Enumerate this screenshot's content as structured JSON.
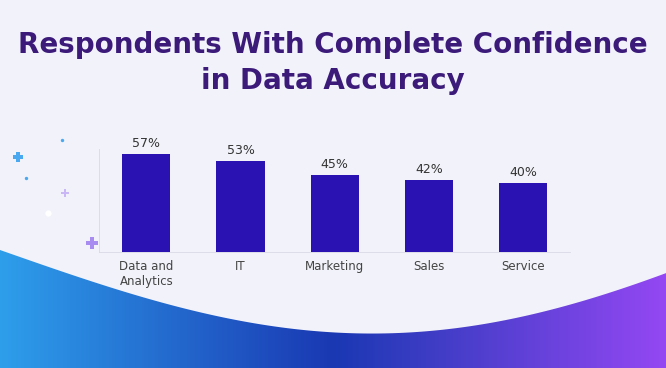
{
  "chart_data": {
    "type": "bar",
    "title": "Respondents With Complete Confidence in Data Accuracy",
    "categories": [
      "Data and Analytics",
      "IT",
      "Marketing",
      "Sales",
      "Service"
    ],
    "values": [
      57,
      53,
      45,
      42,
      40
    ],
    "value_labels": [
      "57%",
      "53%",
      "45%",
      "42%",
      "40%"
    ],
    "color": "#2a12b2",
    "ylim": [
      0,
      60
    ],
    "data_labels": true,
    "tick_labels": "x"
  }
}
